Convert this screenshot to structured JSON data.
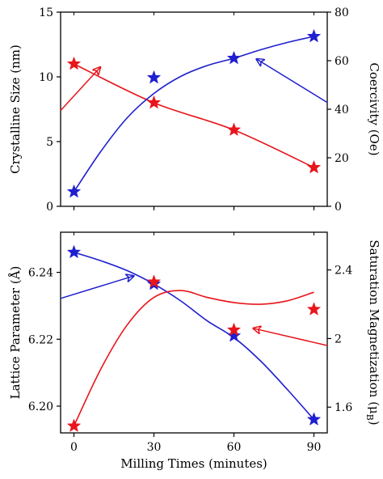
{
  "chart_data": [
    {
      "type": "line",
      "x": [
        0,
        30,
        60,
        90
      ],
      "xlim": [
        -5,
        95
      ],
      "ylabel": "Crystalline Size (nm)",
      "y2label": "Coercivity (Oe)",
      "ylim": [
        0,
        15
      ],
      "y2lim": [
        0,
        80
      ],
      "yticks": [
        0,
        5,
        10,
        15
      ],
      "y2ticks": [
        0,
        20,
        40,
        60,
        80
      ],
      "series": [
        {
          "axis": "left",
          "color": "#e8151b",
          "marker": "star",
          "values": [
            11.0,
            8.0,
            5.9,
            3.0
          ],
          "fit": [
            [
              0,
              11.0
            ],
            [
              30,
              8.0
            ],
            [
              60,
              5.9
            ],
            [
              90,
              3.0
            ]
          ],
          "arrow_direction": "left"
        },
        {
          "axis": "right",
          "color": "#1f1fcf",
          "marker": "star",
          "values": [
            6.0,
            53.0,
            61.0,
            70.0
          ],
          "fit": [
            [
              0,
              6.0
            ],
            [
              10,
              22.5
            ],
            [
              20,
              36.5
            ],
            [
              30,
              46.5
            ],
            [
              40,
              53.5
            ],
            [
              50,
              58.0
            ],
            [
              60,
              61.0
            ],
            [
              70,
              64.5
            ],
            [
              80,
              67.5
            ],
            [
              90,
              70.0
            ]
          ],
          "arrow_direction": "right"
        }
      ]
    },
    {
      "type": "line",
      "x": [
        0,
        30,
        60,
        90
      ],
      "xlim": [
        -5,
        95
      ],
      "xticks": [
        0,
        30,
        60,
        90
      ],
      "xlabel": "Milling Times (minutes)",
      "ylabel": "Lattice Parameter (Å)",
      "y2label_text": "Saturation Magnetization (μ",
      "y2label_sub": "B",
      "y2label_close": ")",
      "ylim": [
        6.192,
        6.252
      ],
      "y2lim": [
        1.45,
        2.62
      ],
      "yticks": [
        6.2,
        6.22,
        6.24
      ],
      "y2ticks": [
        1.6,
        2.0,
        2.4
      ],
      "series": [
        {
          "axis": "left",
          "color": "#1f1fcf",
          "marker": "star",
          "values": [
            6.246,
            6.2365,
            6.221,
            6.196
          ],
          "fit": [
            [
              0,
              6.246
            ],
            [
              10,
              6.2435
            ],
            [
              20,
              6.2405
            ],
            [
              30,
              6.2365
            ],
            [
              40,
              6.2315
            ],
            [
              50,
              6.2255
            ],
            [
              60,
              6.2205
            ],
            [
              70,
              6.2135
            ],
            [
              80,
              6.205
            ],
            [
              90,
              6.196
            ]
          ],
          "arrow_direction": "left"
        },
        {
          "axis": "right",
          "color": "#e8151b",
          "marker": "star",
          "values": [
            1.49,
            2.33,
            2.05,
            2.17
          ],
          "fit": [
            [
              0,
              1.49
            ],
            [
              10,
              1.82
            ],
            [
              20,
              2.08
            ],
            [
              30,
              2.24
            ],
            [
              40,
              2.28
            ],
            [
              50,
              2.24
            ],
            [
              60,
              2.21
            ],
            [
              70,
              2.2
            ],
            [
              80,
              2.22
            ],
            [
              90,
              2.27
            ]
          ],
          "arrow_direction": "right"
        }
      ]
    }
  ]
}
